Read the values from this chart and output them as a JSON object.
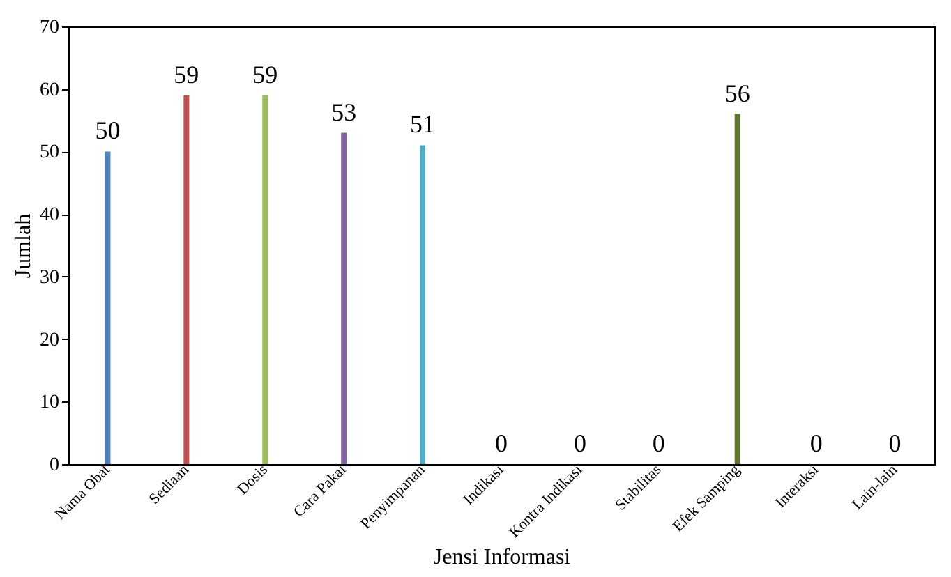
{
  "chart_data": {
    "type": "bar",
    "xlabel": "Jensi Informasi",
    "ylabel": "Jumlah",
    "categories": [
      "Nama Obat",
      "Sediaan",
      "Dosis",
      "Cara Pakai",
      "Penyimpanan",
      "Indikasi",
      "Kontra Indikasi",
      "Stabilitas",
      "Efek Samping",
      "Interaksi",
      "Lain-lain"
    ],
    "values": [
      50,
      59,
      59,
      53,
      51,
      0,
      0,
      0,
      56,
      0,
      0
    ],
    "colors": [
      "#4f81bd",
      "#c0504d",
      "#9bbb59",
      "#8064a2",
      "#4bacc6",
      "#f79646",
      "#2c4d75",
      "#772c2a",
      "#5f7530",
      "#4d3b62",
      "#276a7c"
    ],
    "ylim": [
      0,
      70
    ],
    "yticks": [
      0,
      10,
      20,
      30,
      40,
      50,
      60,
      70
    ],
    "data_labels": true
  }
}
